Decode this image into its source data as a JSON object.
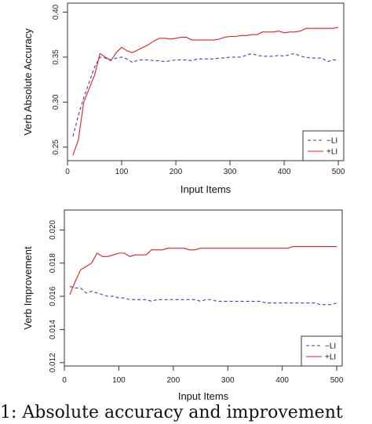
{
  "caption": "1: Absolute accuracy and improvement",
  "colors": {
    "minus": "#3a3ae0",
    "plus": "#e02020",
    "axis": "#333333"
  },
  "chart_data": [
    {
      "type": "line",
      "title": "",
      "xlabel": "Input Items",
      "ylabel": "Verb Absolute Accuracy",
      "xlim": [
        0,
        510
      ],
      "ylim": [
        0.235,
        0.41
      ],
      "xticks": [
        0,
        100,
        200,
        300,
        400,
        500
      ],
      "yticks": [
        0.25,
        0.3,
        0.35,
        0.4
      ],
      "ytick_labels": [
        "0.25",
        "0.30",
        "0.35",
        "0.40"
      ],
      "legend": {
        "position": "bottom-right",
        "entries": [
          "−LI",
          "+LI"
        ]
      },
      "x": [
        10,
        20,
        30,
        40,
        50,
        60,
        70,
        80,
        90,
        100,
        110,
        120,
        130,
        140,
        150,
        160,
        170,
        180,
        190,
        200,
        210,
        220,
        230,
        240,
        250,
        260,
        270,
        280,
        290,
        300,
        310,
        320,
        330,
        340,
        350,
        360,
        370,
        380,
        390,
        400,
        410,
        420,
        430,
        440,
        450,
        460,
        470,
        480,
        490,
        500
      ],
      "series": [
        {
          "name": "−LI",
          "style": "dashed",
          "values": [
            0.262,
            0.285,
            0.305,
            0.322,
            0.339,
            0.35,
            0.349,
            0.347,
            0.349,
            0.35,
            0.348,
            0.344,
            0.347,
            0.347,
            0.347,
            0.346,
            0.346,
            0.345,
            0.346,
            0.347,
            0.347,
            0.347,
            0.346,
            0.348,
            0.348,
            0.348,
            0.348,
            0.349,
            0.349,
            0.35,
            0.35,
            0.35,
            0.352,
            0.354,
            0.352,
            0.351,
            0.351,
            0.351,
            0.352,
            0.351,
            0.353,
            0.354,
            0.351,
            0.35,
            0.349,
            0.349,
            0.349,
            0.345,
            0.347,
            0.347
          ]
        },
        {
          "name": "+LI",
          "style": "solid",
          "values": [
            0.241,
            0.258,
            0.3,
            0.315,
            0.33,
            0.354,
            0.35,
            0.346,
            0.355,
            0.361,
            0.357,
            0.355,
            0.358,
            0.361,
            0.364,
            0.368,
            0.371,
            0.371,
            0.37,
            0.371,
            0.372,
            0.372,
            0.369,
            0.369,
            0.369,
            0.369,
            0.369,
            0.37,
            0.372,
            0.373,
            0.373,
            0.374,
            0.374,
            0.375,
            0.375,
            0.378,
            0.378,
            0.378,
            0.379,
            0.377,
            0.378,
            0.378,
            0.379,
            0.382,
            0.382,
            0.382,
            0.382,
            0.382,
            0.382,
            0.383
          ]
        }
      ]
    },
    {
      "type": "line",
      "title": "",
      "xlabel": "Input Items",
      "ylabel": "Verb Improvement",
      "xlim": [
        0,
        510
      ],
      "ylim": [
        0.0118,
        0.0212
      ],
      "xticks": [
        0,
        100,
        200,
        300,
        400,
        500
      ],
      "yticks": [
        0.012,
        0.014,
        0.016,
        0.018,
        0.02
      ],
      "ytick_labels": [
        "0.012",
        "0.014",
        "0.016",
        "0.018",
        "0.020"
      ],
      "legend": {
        "position": "bottom-right",
        "entries": [
          "−LI",
          "+LI"
        ]
      },
      "x": [
        10,
        20,
        30,
        40,
        50,
        60,
        70,
        80,
        90,
        100,
        110,
        120,
        130,
        140,
        150,
        160,
        170,
        180,
        190,
        200,
        210,
        220,
        230,
        240,
        250,
        260,
        270,
        280,
        290,
        300,
        310,
        320,
        330,
        340,
        350,
        360,
        370,
        380,
        390,
        400,
        410,
        420,
        430,
        440,
        450,
        460,
        470,
        480,
        490,
        500
      ],
      "series": [
        {
          "name": "−LI",
          "style": "dashed",
          "values": [
            0.0166,
            0.0165,
            0.0165,
            0.0162,
            0.0163,
            0.0162,
            0.0161,
            0.016,
            0.016,
            0.0159,
            0.0159,
            0.0158,
            0.0158,
            0.0158,
            0.0158,
            0.0157,
            0.0158,
            0.0158,
            0.0158,
            0.0158,
            0.0158,
            0.0158,
            0.0158,
            0.0158,
            0.0157,
            0.0158,
            0.0158,
            0.0157,
            0.0157,
            0.0157,
            0.0157,
            0.0157,
            0.0157,
            0.0157,
            0.0157,
            0.0157,
            0.0156,
            0.0156,
            0.0156,
            0.0156,
            0.0156,
            0.0156,
            0.0156,
            0.0156,
            0.0156,
            0.0156,
            0.0155,
            0.0155,
            0.0155,
            0.0156
          ]
        },
        {
          "name": "+LI",
          "style": "solid",
          "values": [
            0.0161,
            0.0169,
            0.0176,
            0.0178,
            0.018,
            0.0186,
            0.0184,
            0.0184,
            0.0185,
            0.0186,
            0.0186,
            0.0184,
            0.0185,
            0.0185,
            0.0185,
            0.0188,
            0.0188,
            0.0188,
            0.0189,
            0.0189,
            0.0189,
            0.0189,
            0.0188,
            0.0188,
            0.0189,
            0.0189,
            0.0189,
            0.0189,
            0.0189,
            0.0189,
            0.0189,
            0.0189,
            0.0189,
            0.0189,
            0.0189,
            0.0189,
            0.0189,
            0.0189,
            0.0189,
            0.0189,
            0.0189,
            0.019,
            0.019,
            0.019,
            0.019,
            0.019,
            0.019,
            0.019,
            0.019,
            0.019
          ]
        }
      ]
    }
  ]
}
